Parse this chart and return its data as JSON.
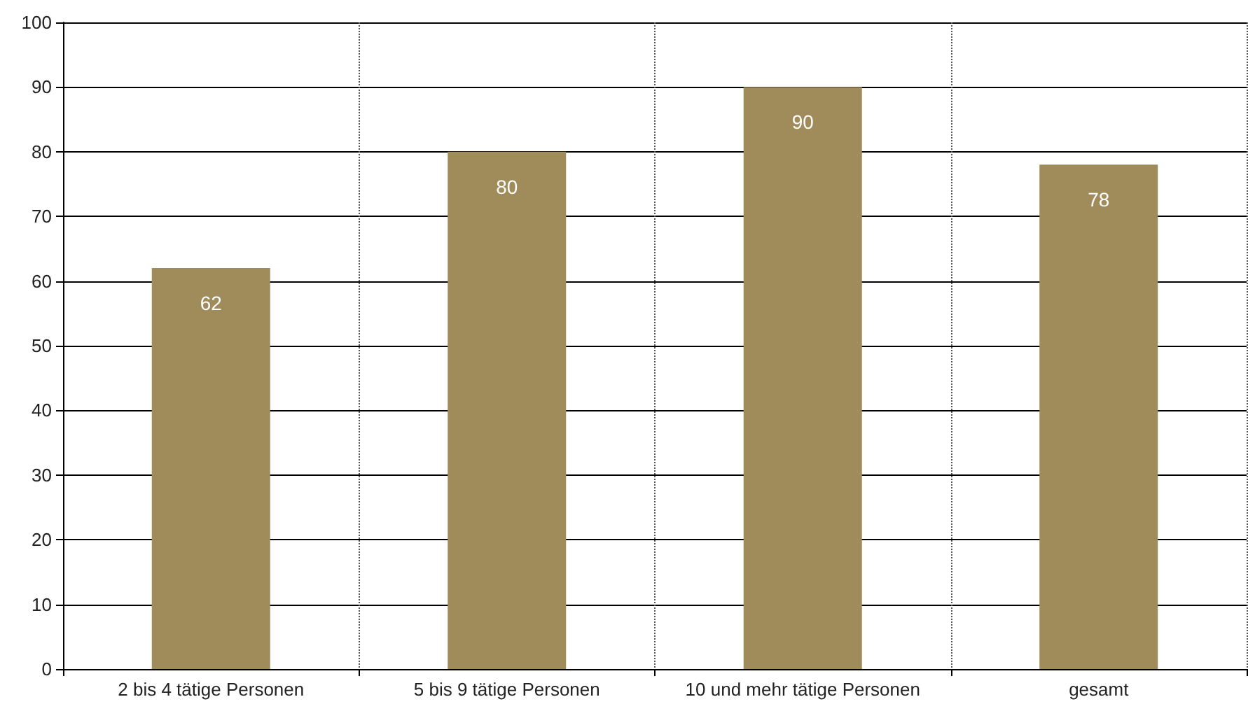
{
  "chart_data": {
    "type": "bar",
    "categories": [
      "2 bis 4 tätige Personen",
      "5 bis 9 tätige Personen",
      "10 und mehr tätige Personen",
      "gesamt"
    ],
    "values": [
      62,
      80,
      90,
      78
    ],
    "color": "#a08c5b",
    "ylim": [
      0,
      100
    ],
    "yticks": [
      0,
      10,
      20,
      30,
      40,
      50,
      60,
      70,
      80,
      90,
      100
    ],
    "grid": true,
    "data_labels": true
  }
}
